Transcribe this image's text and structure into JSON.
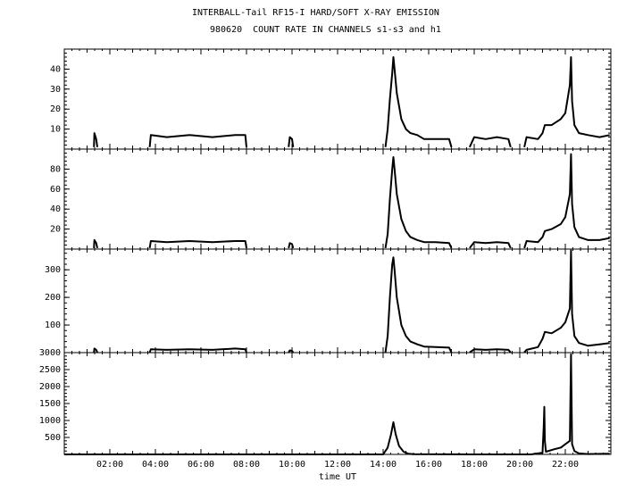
{
  "chart_data": {
    "type": "line",
    "title": "INTERBALL-Tail RF15-I HARD/SOFT X-RAY EMISSION",
    "subtitle": "980620  COUNT RATE IN CHANNELS s1-s3 and h1",
    "xlabel": "time UT",
    "x_tick_labels": [
      "02:00",
      "04:00",
      "06:00",
      "08:00",
      "10:00",
      "12:00",
      "14:00",
      "16:00",
      "18:00",
      "20:00",
      "22:00"
    ],
    "x_ticks_hours": [
      2,
      4,
      6,
      8,
      10,
      12,
      14,
      16,
      18,
      20,
      22
    ],
    "xlim_hours": [
      0,
      24
    ],
    "panels": [
      {
        "channel": "s1",
        "ylim": [
          0,
          50
        ],
        "y_ticks": [
          10,
          20,
          30,
          40
        ],
        "y_tick_labels": [
          "10",
          "20",
          "30",
          "40"
        ],
        "series": [
          {
            "name": "",
            "x": [
              1.3,
              1.32,
              1.4,
              1.45
            ],
            "y": [
              1,
              8,
              5,
              1
            ]
          },
          {
            "name": "",
            "x": [
              3.75,
              3.8,
              4.5,
              5.5,
              6.5,
              7.5,
              7.95,
              8.0
            ],
            "y": [
              1,
              7,
              6,
              7,
              6,
              7,
              7,
              1
            ]
          },
          {
            "name": "",
            "x": [
              9.85,
              9.9,
              10.0,
              10.05
            ],
            "y": [
              1,
              6,
              5,
              1
            ]
          },
          {
            "name": "",
            "x": [
              14.1,
              14.2,
              14.3,
              14.4,
              14.45,
              14.5,
              14.6,
              14.8,
              15.0,
              15.2,
              15.5,
              15.8,
              16.3,
              16.9,
              17.0
            ],
            "y": [
              1,
              10,
              25,
              38,
              46,
              40,
              28,
              15,
              10,
              8,
              7,
              5,
              5,
              5,
              1
            ]
          },
          {
            "name": "",
            "x": [
              17.8,
              18.0,
              18.5,
              19.0,
              19.5,
              19.6
            ],
            "y": [
              1,
              6,
              5,
              6,
              5,
              1
            ]
          },
          {
            "name": "",
            "x": [
              20.2,
              20.3,
              20.8,
              21.0,
              21.1,
              21.4,
              21.8,
              22.0,
              22.2,
              22.25,
              22.3,
              22.4,
              22.6,
              23.0,
              23.5,
              23.95
            ],
            "y": [
              1,
              6,
              5,
              8,
              12,
              12,
              15,
              18,
              32,
              46,
              24,
              12,
              8,
              7,
              6,
              7
            ]
          }
        ]
      },
      {
        "channel": "s2",
        "ylim": [
          0,
          100
        ],
        "y_ticks": [
          20,
          40,
          60,
          80
        ],
        "y_tick_labels": [
          "20",
          "40",
          "60",
          "80"
        ],
        "series": [
          {
            "name": "",
            "x": [
              1.3,
              1.32,
              1.4,
              1.45
            ],
            "y": [
              1,
              9,
              6,
              1
            ]
          },
          {
            "name": "",
            "x": [
              3.75,
              3.8,
              4.5,
              5.5,
              6.5,
              7.5,
              7.95,
              8.0
            ],
            "y": [
              1,
              8,
              7,
              8,
              7,
              8,
              8,
              1
            ]
          },
          {
            "name": "",
            "x": [
              9.85,
              9.9,
              10.0,
              10.05
            ],
            "y": [
              1,
              6,
              5,
              1
            ]
          },
          {
            "name": "",
            "x": [
              14.1,
              14.2,
              14.3,
              14.4,
              14.45,
              14.5,
              14.6,
              14.8,
              15.0,
              15.2,
              15.5,
              15.8,
              16.3,
              16.9,
              17.0
            ],
            "y": [
              1,
              15,
              50,
              80,
              92,
              80,
              55,
              30,
              18,
              12,
              9,
              7,
              7,
              6,
              1
            ]
          },
          {
            "name": "",
            "x": [
              17.8,
              18.0,
              18.5,
              19.0,
              19.5,
              19.6
            ],
            "y": [
              1,
              7,
              6,
              7,
              6,
              1
            ]
          },
          {
            "name": "",
            "x": [
              20.2,
              20.3,
              20.8,
              21.0,
              21.1,
              21.4,
              21.8,
              22.0,
              22.2,
              22.25,
              22.3,
              22.4,
              22.6,
              23.0,
              23.5,
              23.95
            ],
            "y": [
              1,
              8,
              7,
              12,
              18,
              20,
              25,
              32,
              55,
              95,
              45,
              22,
              12,
              9,
              9,
              11
            ]
          }
        ]
      },
      {
        "channel": "s3",
        "ylim": [
          0,
          375
        ],
        "y_ticks": [
          100,
          200,
          300
        ],
        "y_tick_labels": [
          "100",
          "200",
          "300"
        ],
        "series": [
          {
            "name": "",
            "x": [
              1.3,
              1.32,
              1.4,
              1.45
            ],
            "y": [
              1,
              15,
              10,
              1
            ]
          },
          {
            "name": "",
            "x": [
              3.75,
              3.8,
              4.5,
              5.5,
              6.5,
              7.5,
              7.95,
              8.0
            ],
            "y": [
              1,
              12,
              10,
              12,
              10,
              15,
              12,
              1
            ]
          },
          {
            "name": "",
            "x": [
              9.85,
              9.9,
              10.0,
              10.05
            ],
            "y": [
              1,
              8,
              6,
              1
            ]
          },
          {
            "name": "",
            "x": [
              14.1,
              14.2,
              14.3,
              14.4,
              14.45,
              14.5,
              14.6,
              14.8,
              15.0,
              15.2,
              15.5,
              15.8,
              16.3,
              16.9,
              17.0
            ],
            "y": [
              1,
              60,
              200,
              320,
              345,
              300,
              200,
              100,
              60,
              40,
              30,
              22,
              20,
              18,
              1
            ]
          },
          {
            "name": "",
            "x": [
              17.8,
              18.0,
              18.5,
              19.0,
              19.5,
              19.6
            ],
            "y": [
              1,
              12,
              10,
              12,
              10,
              1
            ]
          },
          {
            "name": "",
            "x": [
              20.2,
              20.3,
              20.8,
              21.0,
              21.1,
              21.4,
              21.8,
              22.0,
              22.2,
              22.25,
              22.3,
              22.4,
              22.6,
              23.0,
              23.5,
              23.95
            ],
            "y": [
              1,
              10,
              20,
              50,
              75,
              70,
              90,
              110,
              160,
              370,
              140,
              60,
              35,
              25,
              30,
              35
            ]
          }
        ]
      },
      {
        "channel": "h1",
        "ylim": [
          0,
          3000
        ],
        "y_ticks": [
          500,
          1000,
          1500,
          2000,
          2500,
          3000
        ],
        "y_tick_labels": [
          "500",
          "1000",
          "1500",
          "2000",
          "2500",
          "3000"
        ],
        "series": [
          {
            "name": "",
            "x": [
              0,
              4,
              8,
              14.0,
              14.2,
              14.35,
              14.45,
              14.55,
              14.7,
              14.9,
              15.1,
              15.3,
              18,
              20.5,
              21.0,
              21.05,
              21.08,
              21.1,
              21.15,
              21.5,
              21.8,
              22.0,
              22.2,
              22.25,
              22.3,
              22.4,
              22.6,
              23,
              23.95
            ],
            "y": [
              0,
              0,
              0,
              0,
              200,
              600,
              950,
              600,
              250,
              80,
              20,
              5,
              0,
              0,
              50,
              800,
              1400,
              400,
              80,
              150,
              200,
              300,
              400,
              2950,
              300,
              100,
              30,
              10,
              20
            ]
          }
        ]
      }
    ]
  }
}
